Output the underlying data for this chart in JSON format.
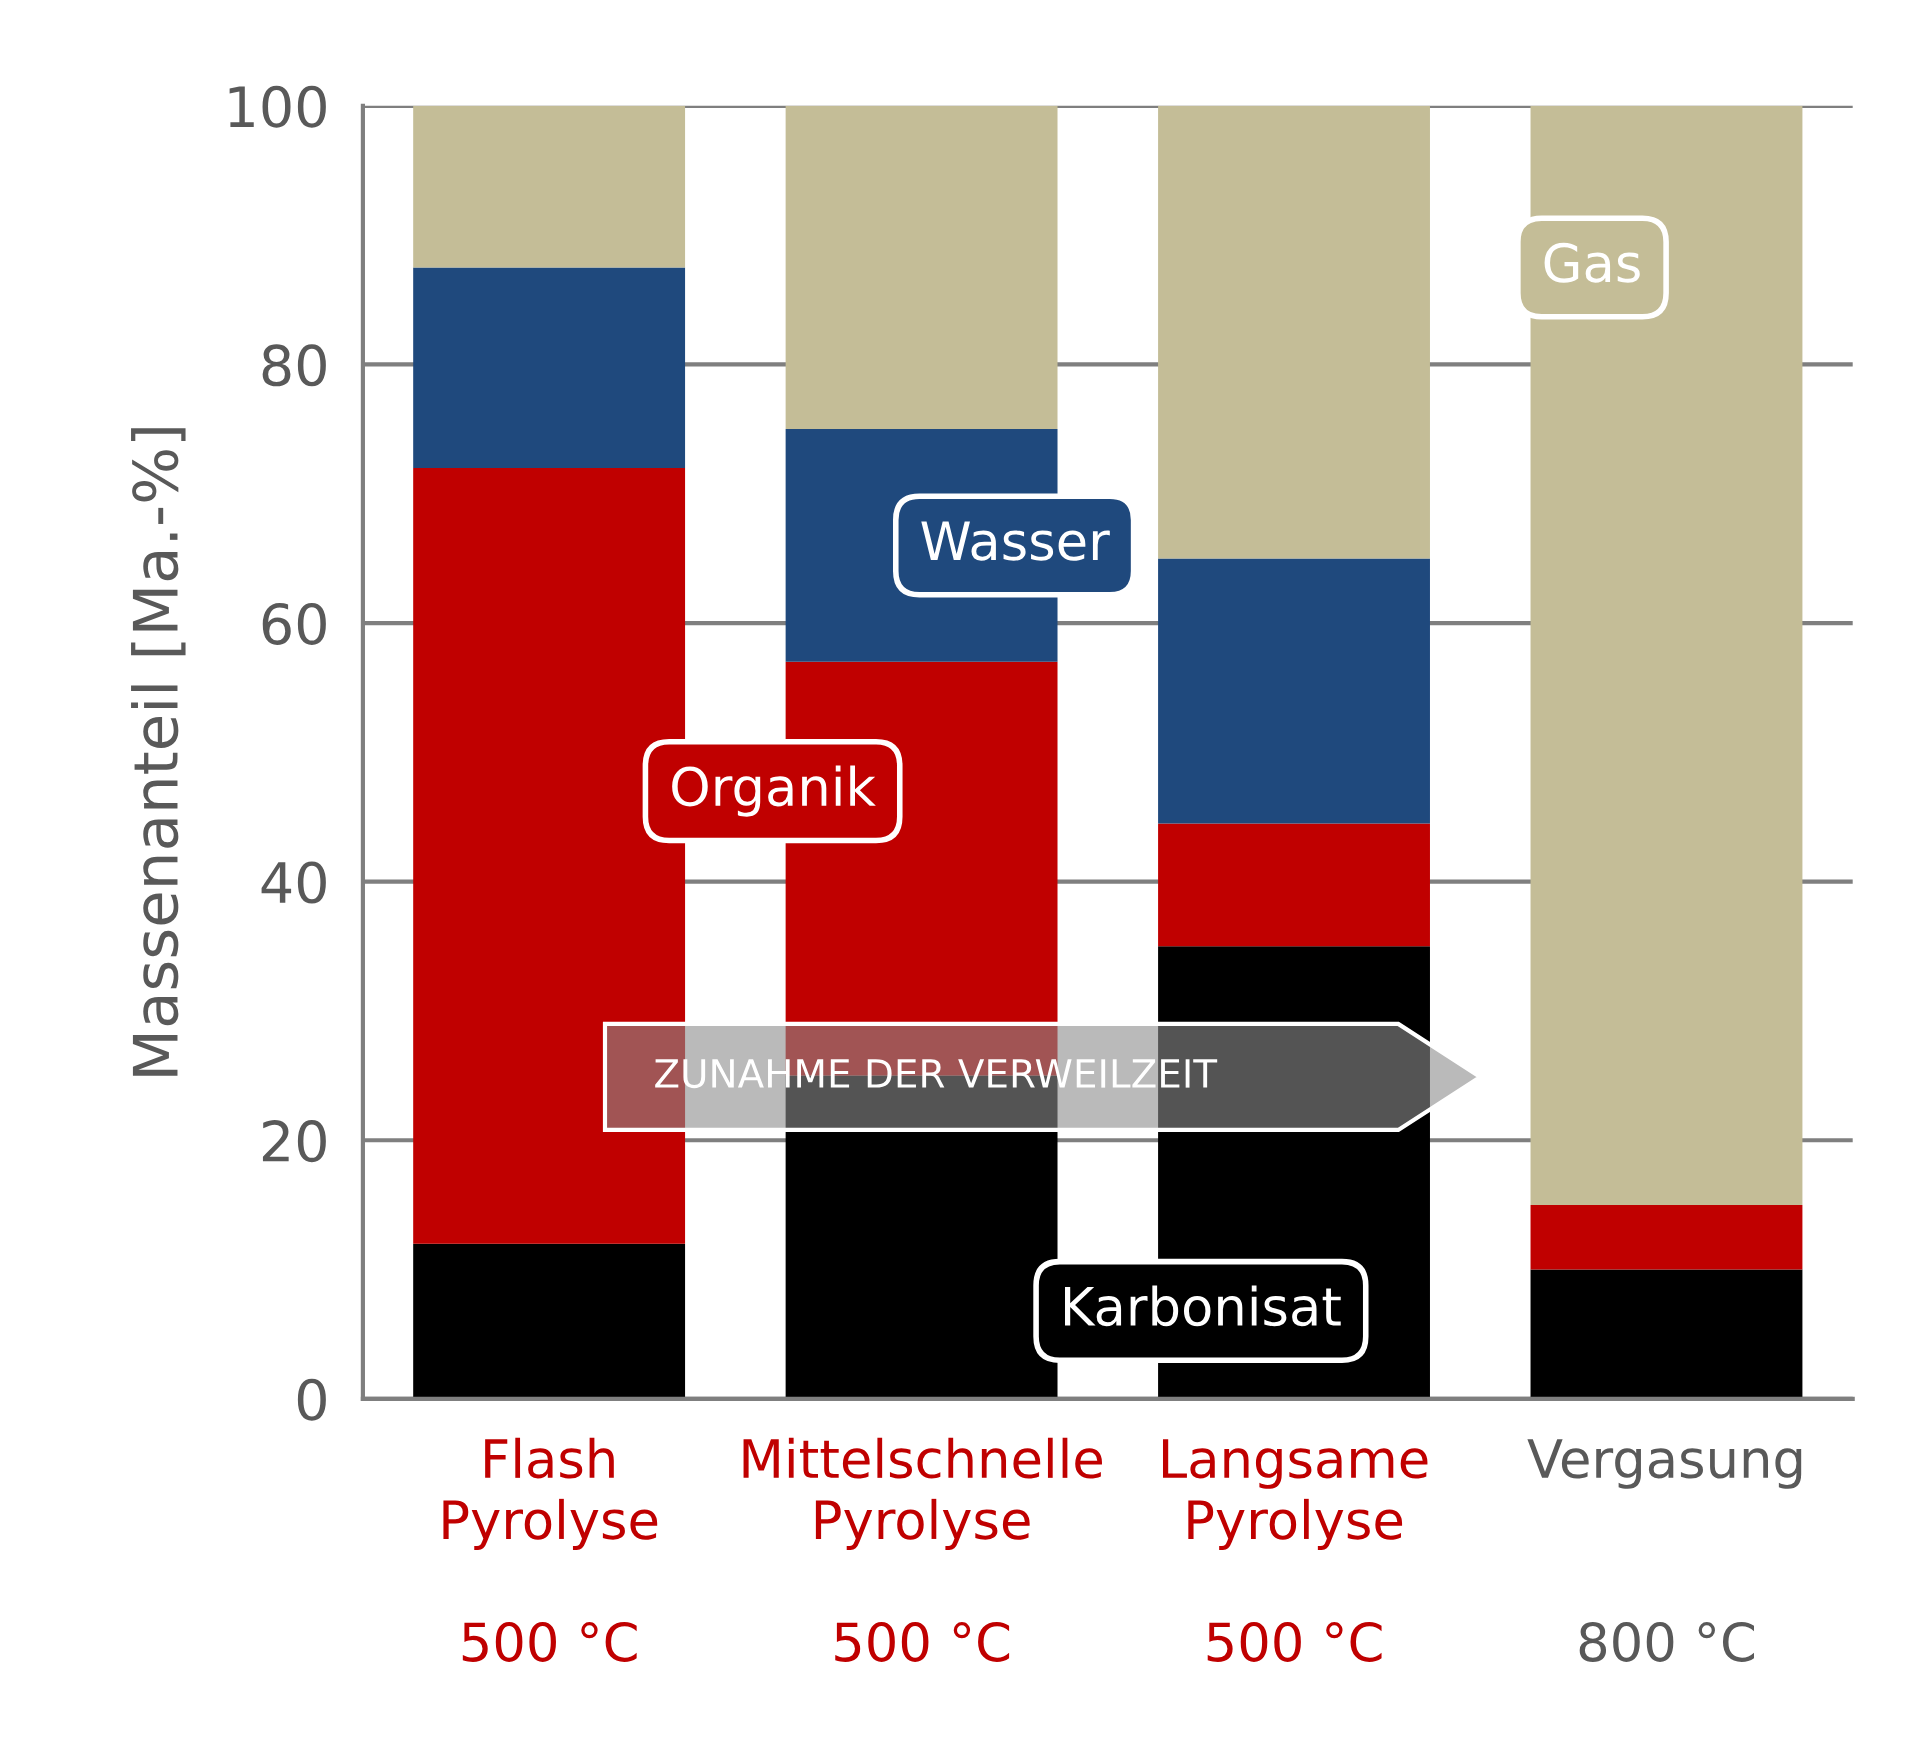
{
  "chart_data": {
    "type": "bar",
    "stacked": true,
    "ylabel": "Massenanteil [Ma.-%]",
    "categories": [
      "Flash\nPyrolyse\n\n500 °C",
      "Mittelschnelle\nPyrolyse\n\n500 °C",
      "Langsame\nPyrolyse\n\n500 °C",
      "Vergasung\n\n\n800 °C"
    ],
    "series": [
      {
        "name": "Karbonisat",
        "color": "#000000",
        "values": [
          12,
          25,
          35,
          10
        ]
      },
      {
        "name": "Organik",
        "color": "#c00000",
        "values": [
          60,
          32,
          9.5,
          5
        ]
      },
      {
        "name": "Wasser",
        "color": "#1f497d",
        "values": [
          15.5,
          18,
          20.5,
          0
        ]
      },
      {
        "name": "Gas",
        "color": "#c4bd97",
        "values": [
          12.5,
          25,
          35,
          85
        ]
      }
    ],
    "ylim": [
      0,
      100
    ],
    "yticks": [
      0,
      20,
      40,
      60,
      80,
      100
    ],
    "grid": "y",
    "legend": false,
    "annotations": [
      "ZUNAHME DER VERWEILZEIT"
    ]
  }
}
